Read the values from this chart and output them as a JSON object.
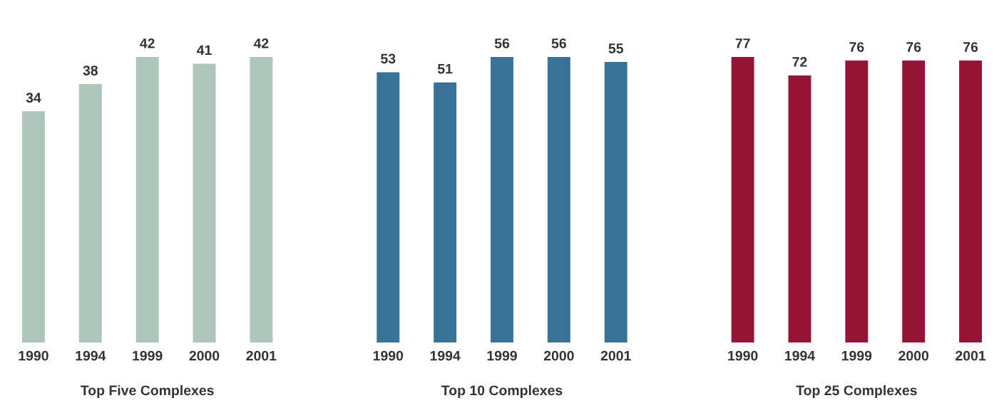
{
  "chart_data": [
    {
      "type": "bar",
      "xlabel": "Top Five Complexes",
      "categories": [
        "1990",
        "1994",
        "1999",
        "2000",
        "2001"
      ],
      "values": [
        34,
        38,
        42,
        41,
        42
      ],
      "color": "#aec5bc",
      "data_labels": true
    },
    {
      "type": "bar",
      "xlabel": "Top 10 Complexes",
      "categories": [
        "1990",
        "1994",
        "1999",
        "2000",
        "2001"
      ],
      "values": [
        53,
        51,
        56,
        56,
        55
      ],
      "color": "#3a7296",
      "data_labels": true
    },
    {
      "type": "bar",
      "xlabel": "Top 25 Complexes",
      "categories": [
        "1990",
        "1994",
        "1999",
        "2000",
        "2001"
      ],
      "values": [
        77,
        72,
        76,
        76,
        76
      ],
      "color": "#961434",
      "data_labels": true
    }
  ]
}
